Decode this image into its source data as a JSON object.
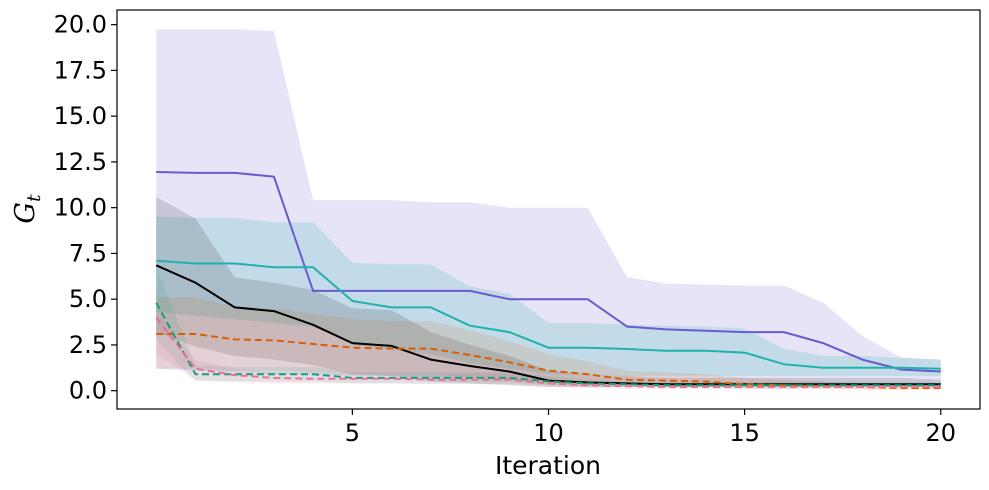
{
  "chart_data": {
    "type": "line",
    "xlabel": "Iteration",
    "ylabel": {
      "main": "G",
      "subscript": "t"
    },
    "xlim": [
      -1,
      21
    ],
    "ylim": [
      -1,
      20.8
    ],
    "xticks": [
      5,
      10,
      15,
      20
    ],
    "yticks": [
      0.0,
      2.5,
      5.0,
      7.5,
      10.0,
      12.5,
      15.0,
      17.5,
      20.0
    ],
    "xtick_labels": [
      "5",
      "10",
      "15",
      "20"
    ],
    "ytick_labels": [
      "0.0",
      "2.5",
      "5.0",
      "7.5",
      "10.0",
      "12.5",
      "15.0",
      "17.5",
      "20.0"
    ],
    "x": [
      0,
      1,
      2,
      3,
      4,
      5,
      6,
      7,
      8,
      9,
      10,
      11,
      12,
      13,
      14,
      15,
      16,
      17,
      18,
      19,
      20
    ],
    "series": [
      {
        "name": "slateblue-solid",
        "color": "#6a5acd",
        "dash": false,
        "band_opacity": 0.16,
        "values": [
          11.95,
          11.9,
          11.9,
          11.7,
          5.45,
          5.45,
          5.45,
          5.45,
          5.45,
          5.0,
          5.0,
          5.0,
          3.5,
          3.35,
          3.28,
          3.2,
          3.2,
          2.6,
          1.7,
          1.15,
          1.05
        ],
        "lower": [
          1.2,
          1.1,
          1.0,
          0.9,
          0.9,
          0.8,
          0.8,
          0.7,
          0.7,
          0.6,
          0.5,
          0.5,
          0.4,
          0.4,
          0.4,
          0.4,
          0.4,
          0.4,
          0.4,
          0.4,
          0.4
        ],
        "upper": [
          19.75,
          19.75,
          19.75,
          19.65,
          10.4,
          10.4,
          10.4,
          10.3,
          10.3,
          10.0,
          10.0,
          10.0,
          6.2,
          5.85,
          5.8,
          5.75,
          5.75,
          4.8,
          3.0,
          1.8,
          1.7
        ]
      },
      {
        "name": "lightseagreen-solid",
        "color": "#20b2aa",
        "dash": false,
        "band_opacity": 0.18,
        "values": [
          7.1,
          6.95,
          6.95,
          6.75,
          6.75,
          4.9,
          4.55,
          4.55,
          3.55,
          3.2,
          2.35,
          2.35,
          2.28,
          2.18,
          2.18,
          2.08,
          1.45,
          1.25,
          1.25,
          1.25,
          1.2
        ],
        "lower": [
          4.3,
          4.1,
          3.9,
          3.7,
          3.5,
          2.5,
          2.3,
          2.0,
          1.5,
          1.2,
          0.9,
          0.9,
          0.8,
          0.8,
          0.8,
          0.8,
          0.8,
          0.8,
          0.8,
          0.8,
          0.8
        ],
        "upper": [
          9.5,
          9.45,
          9.45,
          9.2,
          9.2,
          7.0,
          6.9,
          6.9,
          5.7,
          5.3,
          3.7,
          3.7,
          3.6,
          3.55,
          3.5,
          3.4,
          2.3,
          1.9,
          1.9,
          1.8,
          1.7
        ]
      },
      {
        "name": "black-solid",
        "color": "#000000",
        "dash": false,
        "band_opacity": 0.13,
        "values": [
          6.85,
          5.9,
          4.55,
          4.35,
          3.6,
          2.6,
          2.45,
          1.7,
          1.35,
          1.05,
          0.55,
          0.45,
          0.4,
          0.35,
          0.35,
          0.35,
          0.35,
          0.35,
          0.35,
          0.35,
          0.35
        ],
        "lower": [
          3.2,
          2.4,
          1.9,
          1.7,
          1.4,
          0.9,
          0.8,
          0.5,
          0.4,
          0.3,
          0.2,
          0.2,
          0.2,
          0.2,
          0.2,
          0.2,
          0.2,
          0.2,
          0.2,
          0.2,
          0.2
        ],
        "upper": [
          10.6,
          9.4,
          6.2,
          5.9,
          5.5,
          4.5,
          4.4,
          3.2,
          2.5,
          1.9,
          1.1,
          0.9,
          0.8,
          0.7,
          0.7,
          0.7,
          0.7,
          0.7,
          0.7,
          0.7,
          0.6
        ]
      },
      {
        "name": "orange-dashed",
        "color": "#d95f02",
        "dash": true,
        "band_opacity": 0.13,
        "values": [
          3.1,
          3.1,
          2.8,
          2.75,
          2.55,
          2.35,
          2.3,
          2.3,
          1.95,
          1.55,
          1.1,
          0.9,
          0.6,
          0.55,
          0.5,
          0.35,
          0.3,
          0.25,
          0.2,
          0.15,
          0.15
        ],
        "lower": [
          1.2,
          1.2,
          1.1,
          1.1,
          1.0,
          0.9,
          0.9,
          0.9,
          0.7,
          0.5,
          0.3,
          0.3,
          0.2,
          0.2,
          0.2,
          0.1,
          0.1,
          0.1,
          0.05,
          0.05,
          0.05
        ],
        "upper": [
          5.1,
          5.1,
          4.6,
          4.5,
          4.2,
          3.9,
          3.8,
          3.8,
          3.3,
          2.7,
          2.0,
          1.6,
          1.1,
          1.0,
          0.9,
          0.7,
          0.6,
          0.5,
          0.4,
          0.35,
          0.3
        ]
      },
      {
        "name": "teal-dashed",
        "color": "#1b9e77",
        "dash": true,
        "band_opacity": 0.12,
        "values": [
          4.8,
          0.9,
          0.9,
          0.9,
          0.9,
          0.7,
          0.7,
          0.7,
          0.7,
          0.7,
          0.5,
          0.4,
          0.35,
          0.3,
          0.3,
          0.3,
          0.3,
          0.3,
          0.3,
          0.3,
          0.3
        ],
        "lower": [
          2.8,
          0.5,
          0.5,
          0.5,
          0.5,
          0.4,
          0.4,
          0.4,
          0.4,
          0.4,
          0.3,
          0.2,
          0.2,
          0.2,
          0.2,
          0.2,
          0.2,
          0.2,
          0.2,
          0.2,
          0.2
        ],
        "upper": [
          6.8,
          1.4,
          1.3,
          1.3,
          1.3,
          1.0,
          1.0,
          1.0,
          1.0,
          1.0,
          0.8,
          0.6,
          0.5,
          0.5,
          0.5,
          0.5,
          0.5,
          0.5,
          0.5,
          0.5,
          0.5
        ]
      },
      {
        "name": "pink-dashed",
        "color": "#e7729a",
        "dash": true,
        "band_opacity": 0.15,
        "values": [
          4.0,
          1.2,
          0.85,
          0.7,
          0.65,
          0.65,
          0.65,
          0.6,
          0.6,
          0.6,
          0.4,
          0.3,
          0.25,
          0.2,
          0.2,
          0.2,
          0.2,
          0.2,
          0.2,
          0.2,
          0.2
        ],
        "lower": [
          2.0,
          0.6,
          0.5,
          0.4,
          0.4,
          0.4,
          0.4,
          0.35,
          0.35,
          0.35,
          0.2,
          0.15,
          0.1,
          0.1,
          0.1,
          0.1,
          0.1,
          0.1,
          0.1,
          0.1,
          0.1
        ],
        "upper": [
          4.3,
          1.7,
          1.2,
          1.0,
          0.95,
          0.95,
          0.95,
          0.9,
          0.9,
          0.9,
          0.6,
          0.5,
          0.4,
          0.35,
          0.35,
          0.35,
          0.35,
          0.35,
          0.35,
          0.35,
          0.35
        ]
      }
    ]
  }
}
